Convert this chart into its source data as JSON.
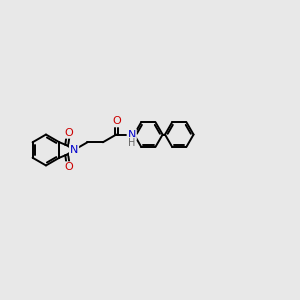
{
  "background_color": "#e8e8e8",
  "bond_color": "#000000",
  "nitrogen_color": "#0000cc",
  "oxygen_color": "#cc0000",
  "hydrogen_color": "#666666",
  "line_width": 1.4,
  "figsize": [
    3.0,
    3.0
  ],
  "dpi": 100,
  "xlim": [
    0,
    10
  ],
  "ylim": [
    2,
    9
  ]
}
